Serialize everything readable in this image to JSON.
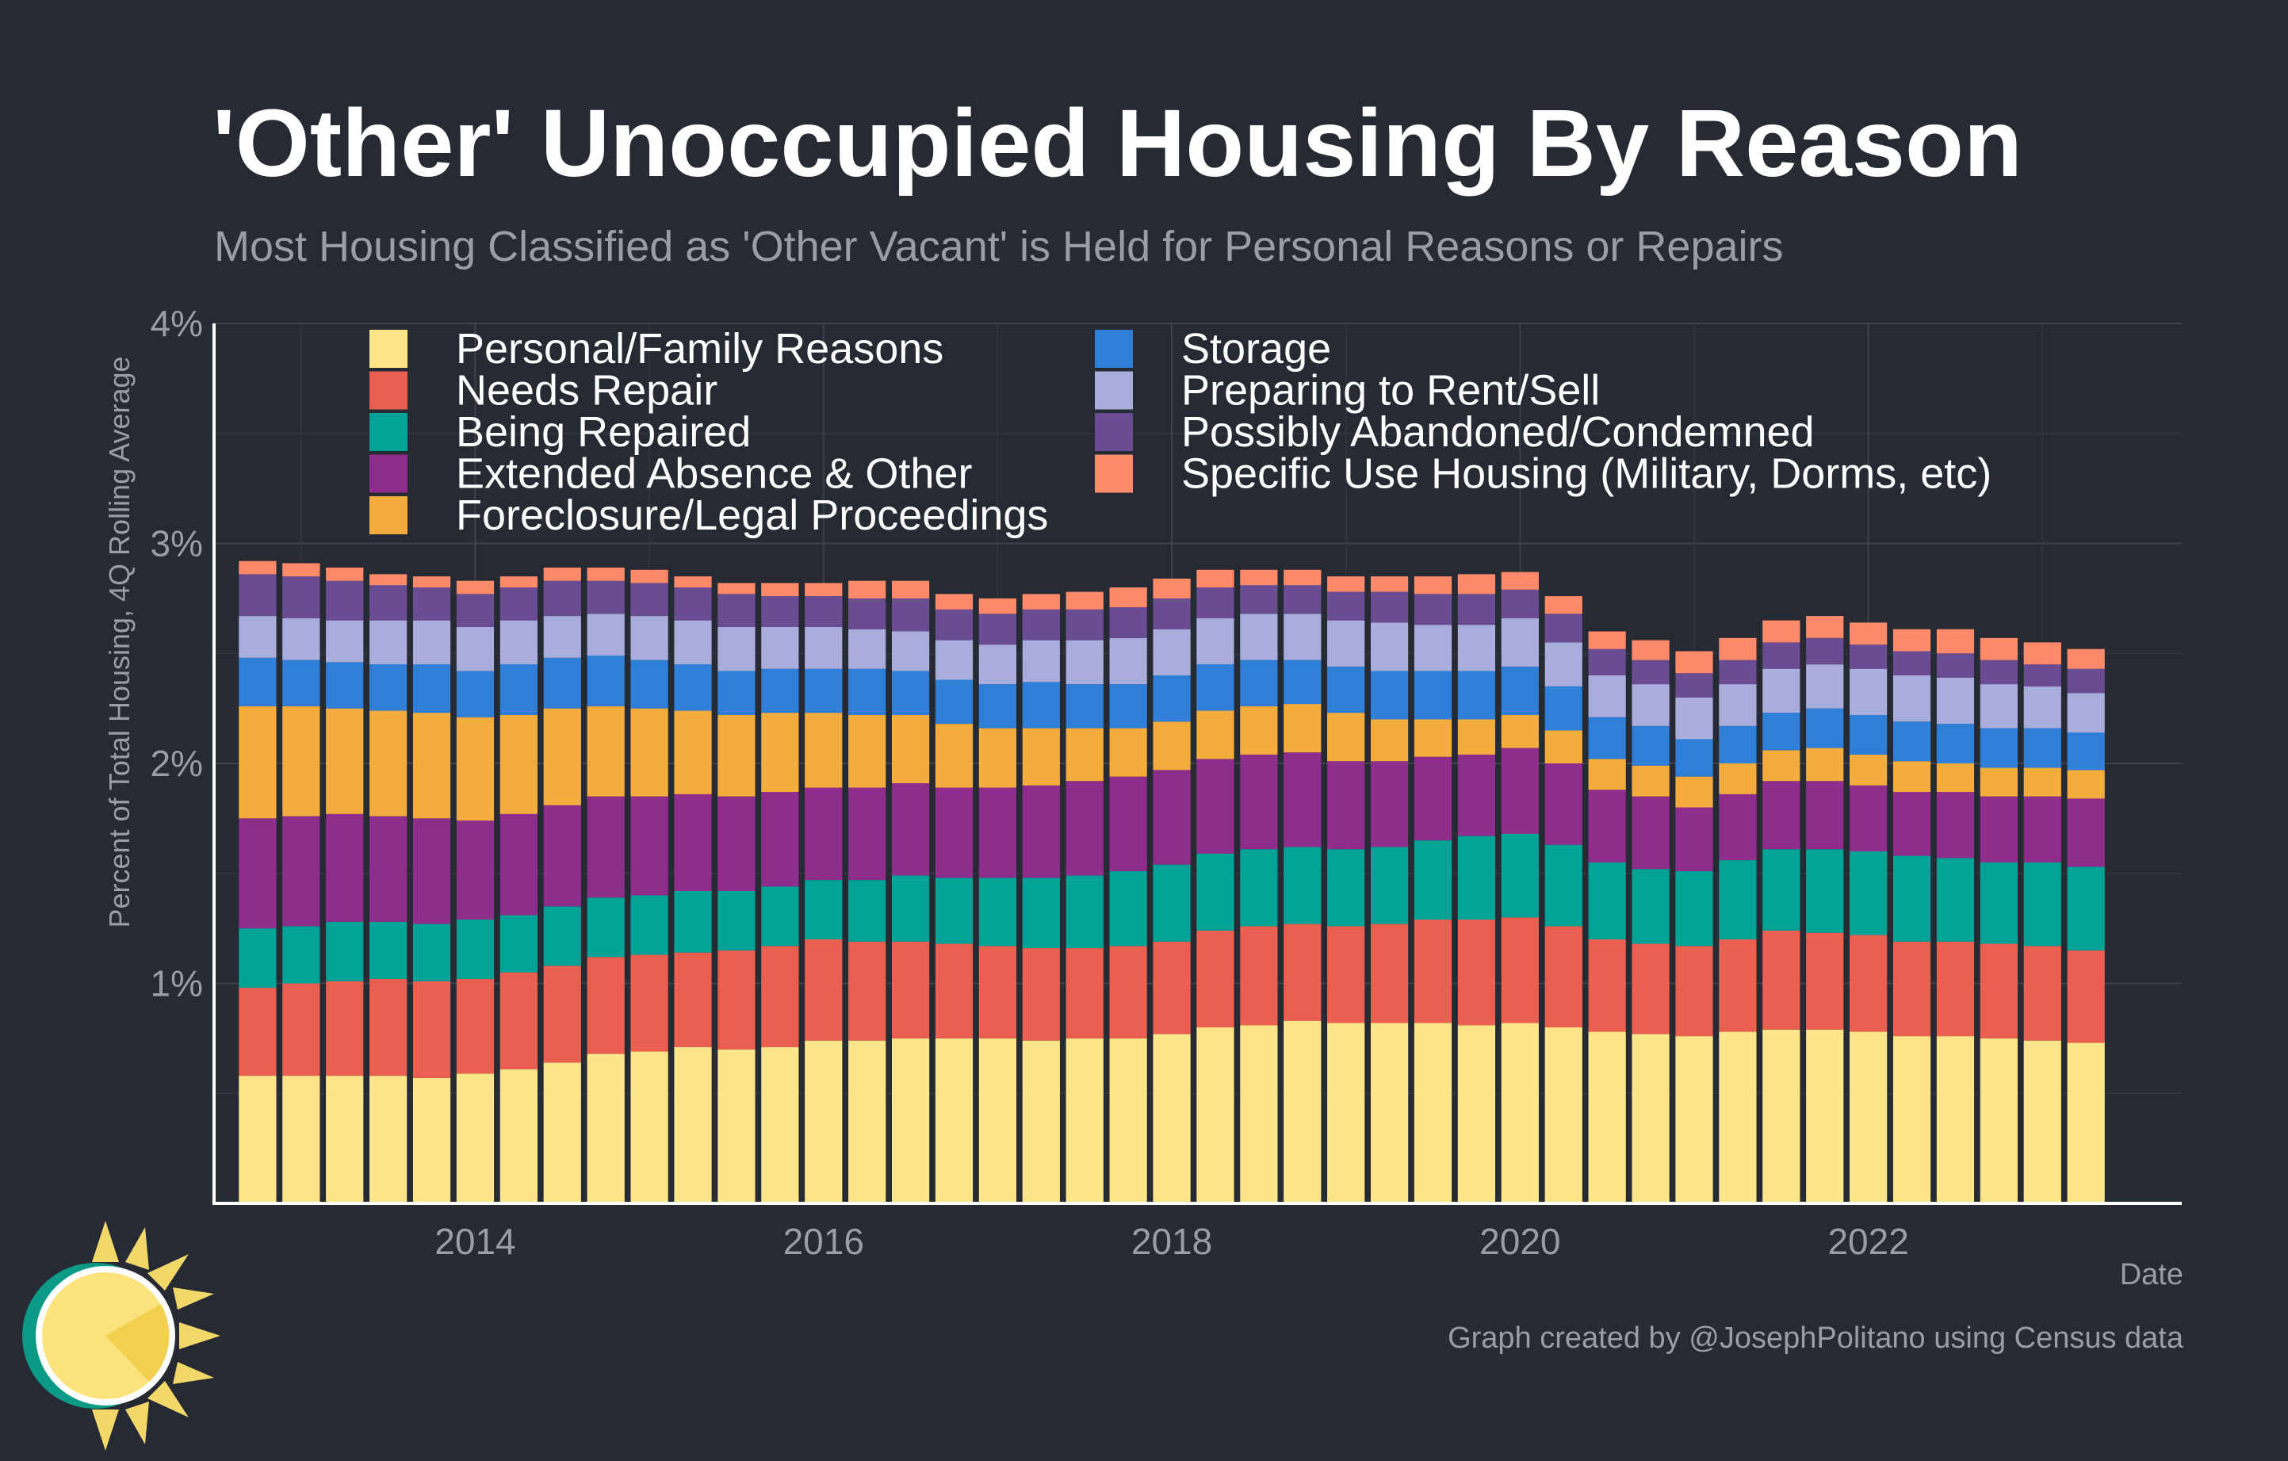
{
  "title": "'Other' Unoccupied Housing By Reason",
  "subtitle": "Most Housing Classified as 'Other Vacant' is Held for Personal Reasons or Repairs",
  "footer": {
    "credit": "Graph created by @JosephPolitano using Census data"
  },
  "logo_icon": "sun-icon",
  "chart_data": {
    "type": "bar",
    "stacked": true,
    "xlabel": "Date",
    "ylabel": "Percent of Total Housing, 4Q Rolling Average",
    "ylim": [
      0,
      4
    ],
    "yticks": [
      1,
      2,
      3,
      4
    ],
    "ytick_labels": [
      "1%",
      "2%",
      "3%",
      "4%"
    ],
    "x_ticks": [
      "2014",
      "2016",
      "2018",
      "2020",
      "2022"
    ],
    "x_tick_positions": [
      2014,
      2016,
      2018,
      2020,
      2022
    ],
    "xlim": [
      2012.5,
      2023.8
    ],
    "grid": true,
    "legend_position": "top-left",
    "x": [
      2012.75,
      2013.0,
      2013.25,
      2013.5,
      2013.75,
      2014.0,
      2014.25,
      2014.5,
      2014.75,
      2015.0,
      2015.25,
      2015.5,
      2015.75,
      2016.0,
      2016.25,
      2016.5,
      2016.75,
      2017.0,
      2017.25,
      2017.5,
      2017.75,
      2018.0,
      2018.25,
      2018.5,
      2018.75,
      2019.0,
      2019.25,
      2019.5,
      2019.75,
      2020.0,
      2020.25,
      2020.5,
      2020.75,
      2021.0,
      2021.25,
      2021.5,
      2021.75,
      2022.0,
      2022.25,
      2022.5,
      2022.75,
      2023.0,
      2023.25
    ],
    "series": [
      {
        "name": "Personal/Family Reasons",
        "color": "#fde68a",
        "values": [
          0.58,
          0.58,
          0.58,
          0.58,
          0.57,
          0.59,
          0.61,
          0.64,
          0.68,
          0.69,
          0.71,
          0.7,
          0.71,
          0.74,
          0.74,
          0.75,
          0.75,
          0.75,
          0.74,
          0.75,
          0.75,
          0.77,
          0.8,
          0.81,
          0.83,
          0.82,
          0.82,
          0.82,
          0.81,
          0.82,
          0.8,
          0.78,
          0.77,
          0.76,
          0.78,
          0.79,
          0.79,
          0.78,
          0.76,
          0.76,
          0.75,
          0.74,
          0.73
        ]
      },
      {
        "name": "Needs Repair",
        "color": "#ea5f50",
        "values": [
          0.4,
          0.42,
          0.43,
          0.44,
          0.44,
          0.43,
          0.44,
          0.44,
          0.44,
          0.44,
          0.43,
          0.45,
          0.46,
          0.46,
          0.45,
          0.44,
          0.43,
          0.42,
          0.42,
          0.41,
          0.42,
          0.42,
          0.44,
          0.45,
          0.44,
          0.44,
          0.45,
          0.47,
          0.48,
          0.48,
          0.46,
          0.42,
          0.41,
          0.41,
          0.42,
          0.45,
          0.44,
          0.44,
          0.43,
          0.43,
          0.43,
          0.43,
          0.42
        ]
      },
      {
        "name": "Being Repaired",
        "color": "#00a396",
        "values": [
          0.27,
          0.26,
          0.27,
          0.26,
          0.26,
          0.27,
          0.26,
          0.27,
          0.27,
          0.27,
          0.28,
          0.27,
          0.27,
          0.27,
          0.28,
          0.3,
          0.3,
          0.31,
          0.32,
          0.33,
          0.34,
          0.35,
          0.35,
          0.35,
          0.35,
          0.35,
          0.35,
          0.36,
          0.38,
          0.38,
          0.37,
          0.35,
          0.34,
          0.34,
          0.36,
          0.37,
          0.38,
          0.38,
          0.39,
          0.38,
          0.37,
          0.38,
          0.38
        ]
      },
      {
        "name": "Extended Absence & Other",
        "color": "#8f2d8c",
        "values": [
          0.5,
          0.5,
          0.49,
          0.48,
          0.48,
          0.45,
          0.46,
          0.46,
          0.46,
          0.45,
          0.44,
          0.43,
          0.43,
          0.42,
          0.42,
          0.42,
          0.41,
          0.41,
          0.42,
          0.43,
          0.43,
          0.43,
          0.43,
          0.43,
          0.43,
          0.4,
          0.39,
          0.38,
          0.37,
          0.39,
          0.37,
          0.33,
          0.33,
          0.29,
          0.3,
          0.31,
          0.31,
          0.3,
          0.29,
          0.3,
          0.3,
          0.3,
          0.31
        ]
      },
      {
        "name": "Foreclosure/Legal Proceedings",
        "color": "#f4ad3d",
        "values": [
          0.51,
          0.5,
          0.48,
          0.48,
          0.48,
          0.47,
          0.45,
          0.44,
          0.41,
          0.4,
          0.38,
          0.37,
          0.36,
          0.34,
          0.33,
          0.31,
          0.29,
          0.27,
          0.26,
          0.24,
          0.22,
          0.22,
          0.22,
          0.22,
          0.22,
          0.22,
          0.19,
          0.17,
          0.16,
          0.15,
          0.15,
          0.14,
          0.14,
          0.14,
          0.14,
          0.14,
          0.15,
          0.14,
          0.14,
          0.13,
          0.13,
          0.13,
          0.13
        ]
      },
      {
        "name": "Storage",
        "color": "#2f7ed8",
        "values": [
          0.22,
          0.21,
          0.21,
          0.21,
          0.22,
          0.21,
          0.23,
          0.23,
          0.23,
          0.22,
          0.21,
          0.2,
          0.2,
          0.2,
          0.21,
          0.2,
          0.2,
          0.2,
          0.21,
          0.2,
          0.2,
          0.21,
          0.21,
          0.21,
          0.2,
          0.21,
          0.22,
          0.22,
          0.22,
          0.22,
          0.2,
          0.19,
          0.18,
          0.17,
          0.17,
          0.17,
          0.18,
          0.18,
          0.18,
          0.18,
          0.18,
          0.18,
          0.17
        ]
      },
      {
        "name": "Preparing to Rent/Sell",
        "color": "#a9addb",
        "values": [
          0.19,
          0.19,
          0.19,
          0.2,
          0.2,
          0.2,
          0.2,
          0.19,
          0.19,
          0.2,
          0.2,
          0.2,
          0.19,
          0.19,
          0.18,
          0.18,
          0.18,
          0.18,
          0.19,
          0.2,
          0.21,
          0.21,
          0.21,
          0.21,
          0.21,
          0.21,
          0.22,
          0.21,
          0.21,
          0.22,
          0.2,
          0.19,
          0.19,
          0.19,
          0.19,
          0.2,
          0.2,
          0.21,
          0.21,
          0.21,
          0.2,
          0.19,
          0.18
        ]
      },
      {
        "name": "Possibly Abandoned/Condemned",
        "color": "#6a4c93",
        "values": [
          0.19,
          0.19,
          0.18,
          0.16,
          0.15,
          0.15,
          0.15,
          0.16,
          0.15,
          0.15,
          0.15,
          0.15,
          0.14,
          0.14,
          0.14,
          0.15,
          0.14,
          0.14,
          0.14,
          0.14,
          0.14,
          0.14,
          0.14,
          0.13,
          0.13,
          0.13,
          0.14,
          0.14,
          0.14,
          0.13,
          0.13,
          0.12,
          0.11,
          0.11,
          0.11,
          0.12,
          0.12,
          0.11,
          0.11,
          0.11,
          0.11,
          0.1,
          0.11
        ]
      },
      {
        "name": "Specific Use Housing (Military, Dorms, etc)",
        "color": "#ff8a6a",
        "values": [
          0.06,
          0.06,
          0.06,
          0.05,
          0.05,
          0.06,
          0.05,
          0.06,
          0.06,
          0.06,
          0.05,
          0.05,
          0.06,
          0.06,
          0.08,
          0.08,
          0.07,
          0.07,
          0.07,
          0.08,
          0.09,
          0.09,
          0.08,
          0.07,
          0.07,
          0.07,
          0.07,
          0.08,
          0.09,
          0.08,
          0.08,
          0.08,
          0.09,
          0.1,
          0.1,
          0.1,
          0.1,
          0.1,
          0.1,
          0.11,
          0.1,
          0.1,
          0.09
        ]
      }
    ]
  }
}
